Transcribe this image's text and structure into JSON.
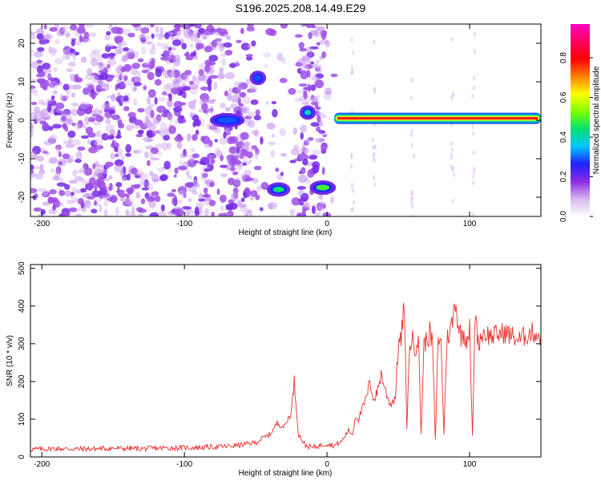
{
  "title": "S196.2025.208.14.49.E29",
  "colors": {
    "snr_line": "#e8312f",
    "signal_core": "#e8203a"
  },
  "chart_data": [
    {
      "type": "heatmap",
      "xlabel": "Height of straight line (km)",
      "ylabel": "Frequency (Hz)",
      "xlim": [
        -208,
        150
      ],
      "ylim": [
        -25,
        25
      ],
      "xticks": [
        -200,
        -100,
        0,
        100
      ],
      "xtick_labels": [
        "-200",
        "-100",
        "0",
        "100"
      ],
      "yticks": [
        -20,
        -10,
        0,
        10,
        20
      ],
      "ytick_labels": [
        "-20",
        "-10",
        "0",
        "10",
        "20"
      ],
      "colorbar": {
        "label": "Normalized spectral amplitude",
        "range": [
          0,
          0.97
        ],
        "ticks": [
          0.0,
          0.2,
          0.4,
          0.6,
          0.8
        ],
        "tick_labels": [
          "0.0",
          "0.2",
          "0.4",
          "0.6",
          "0.8"
        ],
        "colors": [
          "#ffffff",
          "#d8b8f0",
          "#8a2be2",
          "#2020ff",
          "#00c8ff",
          "#00e070",
          "#80ff00",
          "#ffff00",
          "#ff8000",
          "#ff0000",
          "#ff0060",
          "#ff00c0"
        ]
      },
      "features": [
        {
          "x_start": 5,
          "x_end": 150,
          "frequency": 0.5,
          "amplitude": 0.95
        },
        {
          "x_start": -40,
          "x_end": -28,
          "frequency": -18,
          "amplitude": 0.45
        },
        {
          "x_start": -10,
          "x_end": 4,
          "frequency": -17.5,
          "amplitude": 0.5
        },
        {
          "x_start": -80,
          "x_end": -60,
          "frequency": 0,
          "amplitude": 0.3
        },
        {
          "x_start": -52,
          "x_end": -45,
          "frequency": 11,
          "amplitude": 0.3
        },
        {
          "x_start": -17,
          "x_end": -10,
          "frequency": 2,
          "amplitude": 0.4
        }
      ]
    },
    {
      "type": "line",
      "xlabel": "Height of straight line (km)",
      "ylabel": "SNR (10 * v/v)",
      "xlim": [
        -208,
        150
      ],
      "ylim": [
        0,
        510
      ],
      "xticks": [
        -200,
        -100,
        0,
        100
      ],
      "xtick_labels": [
        "-200",
        "-100",
        "0",
        "100"
      ],
      "yticks": [
        0,
        100,
        200,
        300,
        400,
        500
      ],
      "ytick_labels": [
        "0",
        "100",
        "200",
        "300",
        "400",
        "500"
      ],
      "series": [
        {
          "x": [
            -208,
            -190,
            -170,
            -150,
            -130,
            -110,
            -90,
            -70,
            -60,
            -55,
            -50,
            -45,
            -40,
            -35,
            -30,
            -25,
            -23,
            -20,
            -15,
            -10,
            -5,
            0,
            5,
            10,
            15,
            18,
            20,
            22,
            25,
            28,
            30,
            33,
            35,
            38,
            40,
            43,
            45,
            48,
            50,
            52,
            54,
            56,
            58,
            60,
            62,
            64,
            66,
            68,
            70,
            72,
            74,
            76,
            78,
            80,
            82,
            84,
            86,
            88,
            90,
            92,
            94,
            96,
            98,
            100,
            102,
            104,
            106,
            108,
            110,
            115,
            120,
            125,
            130,
            135,
            140,
            145,
            150
          ],
          "y": [
            20,
            22,
            21,
            23,
            22,
            24,
            25,
            28,
            32,
            35,
            38,
            50,
            60,
            90,
            80,
            120,
            200,
            60,
            30,
            25,
            30,
            35,
            30,
            40,
            70,
            60,
            110,
            100,
            130,
            160,
            200,
            150,
            170,
            220,
            190,
            150,
            140,
            160,
            300,
            310,
            410,
            80,
            300,
            310,
            290,
            320,
            60,
            300,
            310,
            330,
            300,
            40,
            320,
            300,
            60,
            310,
            330,
            360,
            420,
            350,
            320,
            330,
            310,
            340,
            50,
            400,
            300,
            320,
            330,
            320,
            325,
            330,
            320,
            310,
            325,
            330,
            320
          ]
        }
      ]
    }
  ]
}
